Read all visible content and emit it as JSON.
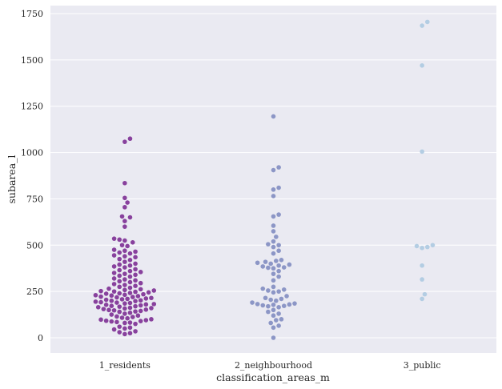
{
  "chart_data": {
    "type": "scatter",
    "subtype": "swarmplot",
    "title": "",
    "xlabel": "classification_areas_m",
    "ylabel": "subarea_l",
    "ylim": [
      -90,
      1770
    ],
    "yticks": [
      0,
      250,
      500,
      750,
      1000,
      1250,
      1500,
      1750
    ],
    "grid": true,
    "categories": [
      "1_residents",
      "2_neighbourhood",
      "3_public"
    ],
    "colors": {
      "background": "#eaeaf2",
      "grid": "#ffffff",
      "1_residents": "#88419d",
      "2_neighbourhood": "#8c96c6",
      "3_public": "#b3cde3"
    },
    "series": [
      {
        "name": "1_residents",
        "values": [
          1075,
          1058,
          835,
          755,
          730,
          705,
          655,
          650,
          630,
          600,
          535,
          530,
          525,
          515,
          500,
          495,
          475,
          470,
          465,
          460,
          455,
          445,
          440,
          435,
          425,
          420,
          410,
          400,
          395,
          390,
          385,
          380,
          370,
          365,
          360,
          355,
          350,
          345,
          340,
          335,
          330,
          320,
          315,
          310,
          305,
          300,
          295,
          290,
          285,
          280,
          275,
          270,
          265,
          262,
          258,
          255,
          252,
          250,
          248,
          245,
          242,
          240,
          238,
          235,
          232,
          230,
          228,
          225,
          222,
          220,
          218,
          215,
          212,
          210,
          208,
          205,
          202,
          200,
          198,
          195,
          192,
          190,
          188,
          185,
          182,
          180,
          178,
          175,
          172,
          170,
          168,
          165,
          162,
          160,
          158,
          155,
          152,
          150,
          148,
          145,
          142,
          140,
          135,
          130,
          125,
          120,
          115,
          112,
          108,
          105,
          100,
          98,
          95,
          92,
          90,
          88,
          85,
          82,
          80,
          75,
          60,
          55,
          50,
          45,
          35,
          30,
          25,
          20
        ]
      },
      {
        "name": "2_neighbourhood",
        "values": [
          1195,
          920,
          905,
          810,
          800,
          765,
          665,
          655,
          605,
          575,
          545,
          520,
          505,
          500,
          490,
          470,
          455,
          420,
          415,
          410,
          405,
          400,
          395,
          390,
          385,
          380,
          378,
          375,
          360,
          345,
          330,
          310,
          275,
          265,
          260,
          255,
          250,
          245,
          225,
          215,
          210,
          205,
          200,
          190,
          185,
          182,
          180,
          178,
          175,
          172,
          170,
          165,
          150,
          140,
          130,
          120,
          100,
          95,
          80,
          65,
          55,
          0
        ]
      },
      {
        "name": "3_public",
        "values": [
          1705,
          1685,
          1470,
          1005,
          500,
          495,
          490,
          485,
          390,
          315,
          235,
          210
        ]
      }
    ]
  }
}
